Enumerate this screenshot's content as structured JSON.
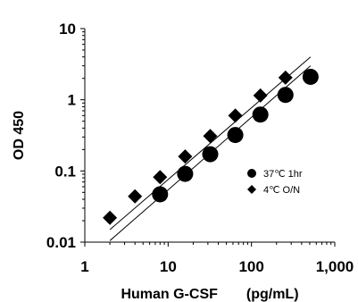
{
  "chart_data": {
    "type": "scatter",
    "xlabel": "Human G-CSF　　(pg/mL)",
    "ylabel": "OD 450",
    "x_scale": "log",
    "y_scale": "log",
    "xlim": [
      1,
      1000
    ],
    "ylim": [
      0.01,
      10
    ],
    "x_tick_labels": [
      "1",
      "10",
      "100",
      "1,000"
    ],
    "y_tick_labels": [
      "0.01",
      "0.1",
      "1",
      "10"
    ],
    "grid": false,
    "legend_position": "lower-right",
    "series": [
      {
        "name": "37℃ 1hr",
        "marker": "circle",
        "color": "#000000",
        "points": [
          [
            8,
            0.047
          ],
          [
            16,
            0.091
          ],
          [
            32,
            0.172
          ],
          [
            64,
            0.32
          ],
          [
            128,
            0.62
          ],
          [
            256,
            1.17
          ],
          [
            512,
            2.1
          ]
        ],
        "fit": [
          [
            2,
            0.0105
          ],
          [
            512,
            3.0
          ]
        ]
      },
      {
        "name": "4℃ O/N",
        "marker": "diamond",
        "color": "#000000",
        "points": [
          [
            2,
            0.022
          ],
          [
            4,
            0.044
          ],
          [
            8,
            0.082
          ],
          [
            16,
            0.16
          ],
          [
            32,
            0.31
          ],
          [
            64,
            0.6
          ],
          [
            128,
            1.15
          ],
          [
            256,
            2.05
          ]
        ],
        "fit": [
          [
            2,
            0.015
          ],
          [
            512,
            4.0
          ]
        ]
      }
    ]
  }
}
